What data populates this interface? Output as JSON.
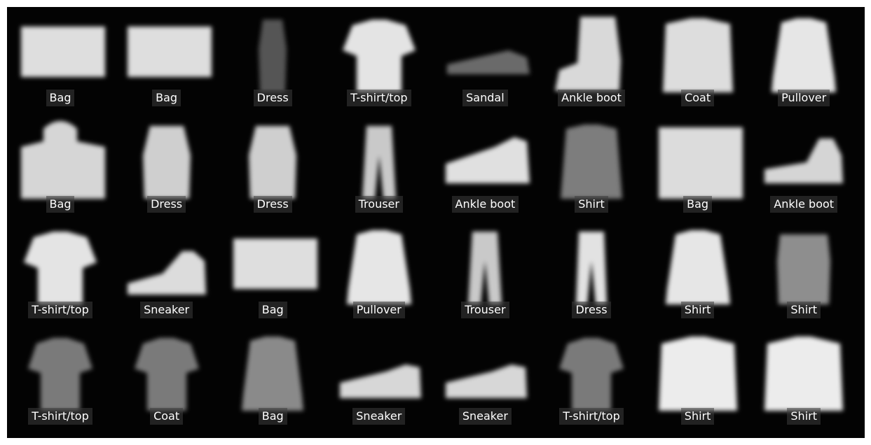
{
  "colors": {
    "background": "#030303",
    "label_text": "#ffffff",
    "label_box": "rgba(60,60,60,0.55)"
  },
  "items": [
    {
      "label": "Bag",
      "kind": "bag"
    },
    {
      "label": "Bag",
      "kind": "bag"
    },
    {
      "label": "Dress",
      "kind": "dress-dark"
    },
    {
      "label": "T-shirt/top",
      "kind": "tshirt"
    },
    {
      "label": "Sandal",
      "kind": "sandal"
    },
    {
      "label": "Ankle boot",
      "kind": "boot-tall"
    },
    {
      "label": "Coat",
      "kind": "coat"
    },
    {
      "label": "Pullover",
      "kind": "pullover"
    },
    {
      "label": "Bag",
      "kind": "bag-handle"
    },
    {
      "label": "Dress",
      "kind": "dress"
    },
    {
      "label": "Dress",
      "kind": "dress"
    },
    {
      "label": "Trouser",
      "kind": "trouser"
    },
    {
      "label": "Ankle boot",
      "kind": "shoe"
    },
    {
      "label": "Shirt",
      "kind": "shirt-dark"
    },
    {
      "label": "Bag",
      "kind": "bag-large"
    },
    {
      "label": "Ankle boot",
      "kind": "boot-low"
    },
    {
      "label": "T-shirt/top",
      "kind": "tshirt"
    },
    {
      "label": "Sneaker",
      "kind": "sneaker-high"
    },
    {
      "label": "Bag",
      "kind": "bag"
    },
    {
      "label": "Pullover",
      "kind": "pullover"
    },
    {
      "label": "Trouser",
      "kind": "trouser"
    },
    {
      "label": "Dress",
      "kind": "trouser-light"
    },
    {
      "label": "Shirt",
      "kind": "pullover"
    },
    {
      "label": "Shirt",
      "kind": "dress-gray"
    },
    {
      "label": "T-shirt/top",
      "kind": "tshirt-gray"
    },
    {
      "label": "Coat",
      "kind": "tshirt-gray"
    },
    {
      "label": "Bag",
      "kind": "pullover-gray"
    },
    {
      "label": "Sneaker",
      "kind": "sneaker"
    },
    {
      "label": "Sneaker",
      "kind": "sneaker"
    },
    {
      "label": "T-shirt/top",
      "kind": "tshirt-gray"
    },
    {
      "label": "Shirt",
      "kind": "coat-light"
    },
    {
      "label": "Shirt",
      "kind": "coat-light"
    }
  ]
}
